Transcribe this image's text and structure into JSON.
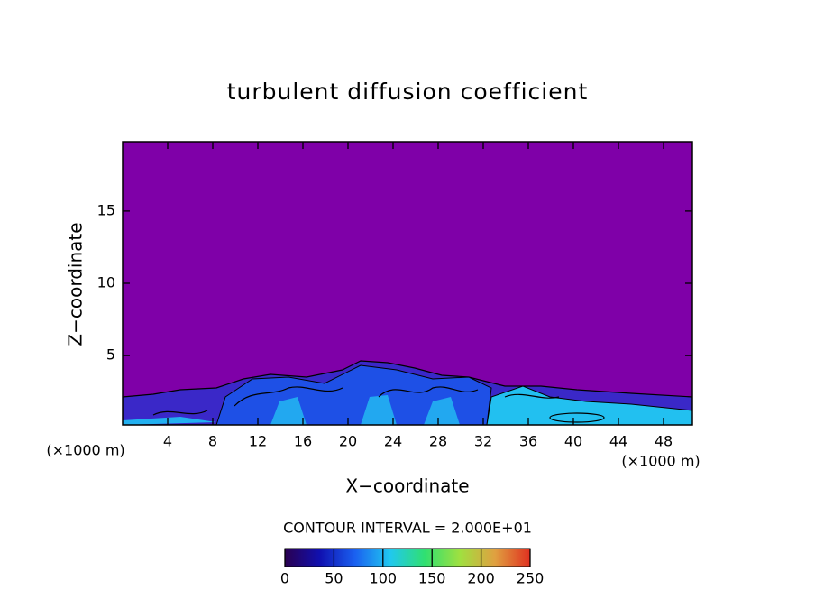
{
  "chart_data": {
    "type": "contour",
    "title": "turbulent diffusion coefficient",
    "xlabel": "X−coordinate",
    "ylabel": "Z−coordinate",
    "x_unit_labels": [
      "(×1000 m)",
      "(×1000 m)"
    ],
    "xlim": [
      0,
      50.56
    ],
    "xticks": [
      4,
      8,
      12,
      16,
      20,
      24,
      28,
      32,
      36,
      40,
      44,
      48
    ],
    "ylim": [
      0.2,
      19.8
    ],
    "yticks": [
      5,
      10,
      15
    ],
    "contour_interval_label": "CONTOUR INTERVAL = 2.000E+01",
    "colorbar_lim": [
      0,
      250
    ],
    "colorbar_ticks": [
      0,
      50,
      100,
      150,
      200,
      250
    ],
    "colorbar_colors": [
      "#2a0050",
      "#1010b0",
      "#1a60f0",
      "#20c8f0",
      "#30e070",
      "#a0e040",
      "#e0a040",
      "#e03020"
    ],
    "background_color": "#7f00a8"
  }
}
